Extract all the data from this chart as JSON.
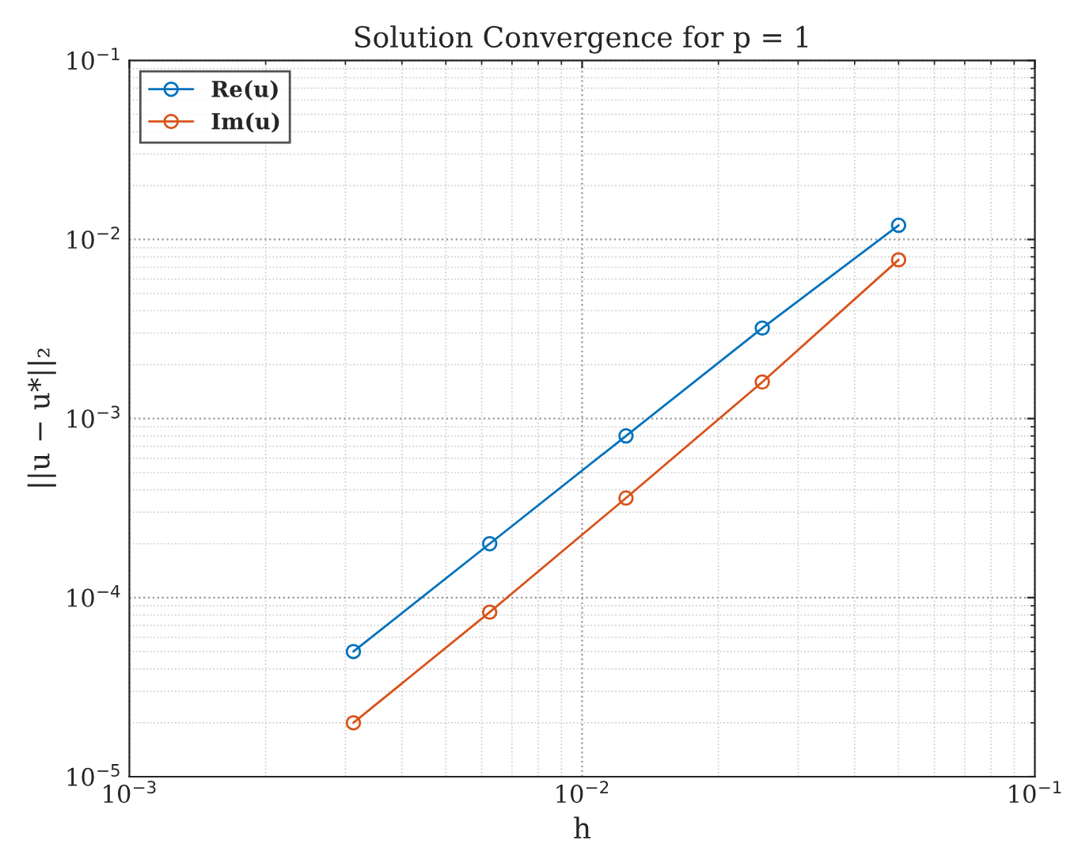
{
  "chart_data": {
    "type": "line",
    "title": "Solution Convergence for p = 1",
    "xlabel": "h",
    "ylabel": "||u − u*||₂",
    "log": "xy",
    "grid": true,
    "legend": "top left",
    "marker": "circle",
    "line_style": "solid",
    "x": [
      0.003125,
      0.00625,
      0.0125,
      0.025,
      0.05
    ],
    "series": [
      {
        "name": "Re(u)",
        "color": "#0072bd",
        "values": [
          5e-05,
          0.0002,
          0.0008,
          0.0032,
          0.012
        ]
      },
      {
        "name": "Im(u)",
        "color": "#d95319",
        "values": [
          2e-05,
          8.3e-05,
          0.00036,
          0.0016,
          0.0077
        ]
      }
    ],
    "xlim": [
      0.001,
      0.1
    ],
    "ylim": [
      1e-05,
      0.1
    ],
    "xticks": [
      {
        "value": 0.001,
        "label": "10$^{−3}$"
      },
      {
        "value": 0.01,
        "label": "10$^{−2}$"
      },
      {
        "value": 0.1,
        "label": "10$^{−1}$"
      }
    ],
    "yticks": [
      {
        "value": 1e-05,
        "label": "10$^{−5}$"
      },
      {
        "value": 0.0001,
        "label": "10$^{−4}$"
      },
      {
        "value": 0.001,
        "label": "10$^{−3}$"
      },
      {
        "value": 0.01,
        "label": "10$^{−2}$"
      },
      {
        "value": 0.1,
        "label": "10$^{−1}$"
      }
    ]
  }
}
